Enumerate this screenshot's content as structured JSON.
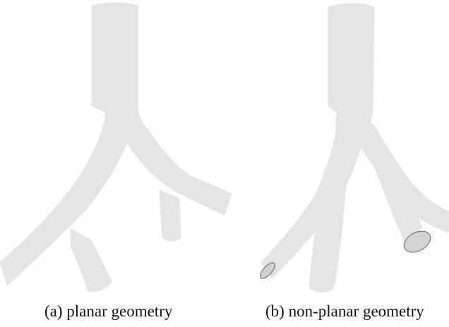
{
  "figure": {
    "panels": [
      {
        "id": "a",
        "caption": "(a) planar geometry"
      },
      {
        "id": "b",
        "caption": "(b) non-planar geometry"
      }
    ]
  },
  "colors": {
    "tube_fill": "#e3e3e3",
    "tube_edge": "#c9c9c9",
    "tube_highlight": "#ededed",
    "tube_shadow": "#d7d7d7",
    "open_end": "#d2d2d2",
    "open_end_edge": "#777777"
  }
}
